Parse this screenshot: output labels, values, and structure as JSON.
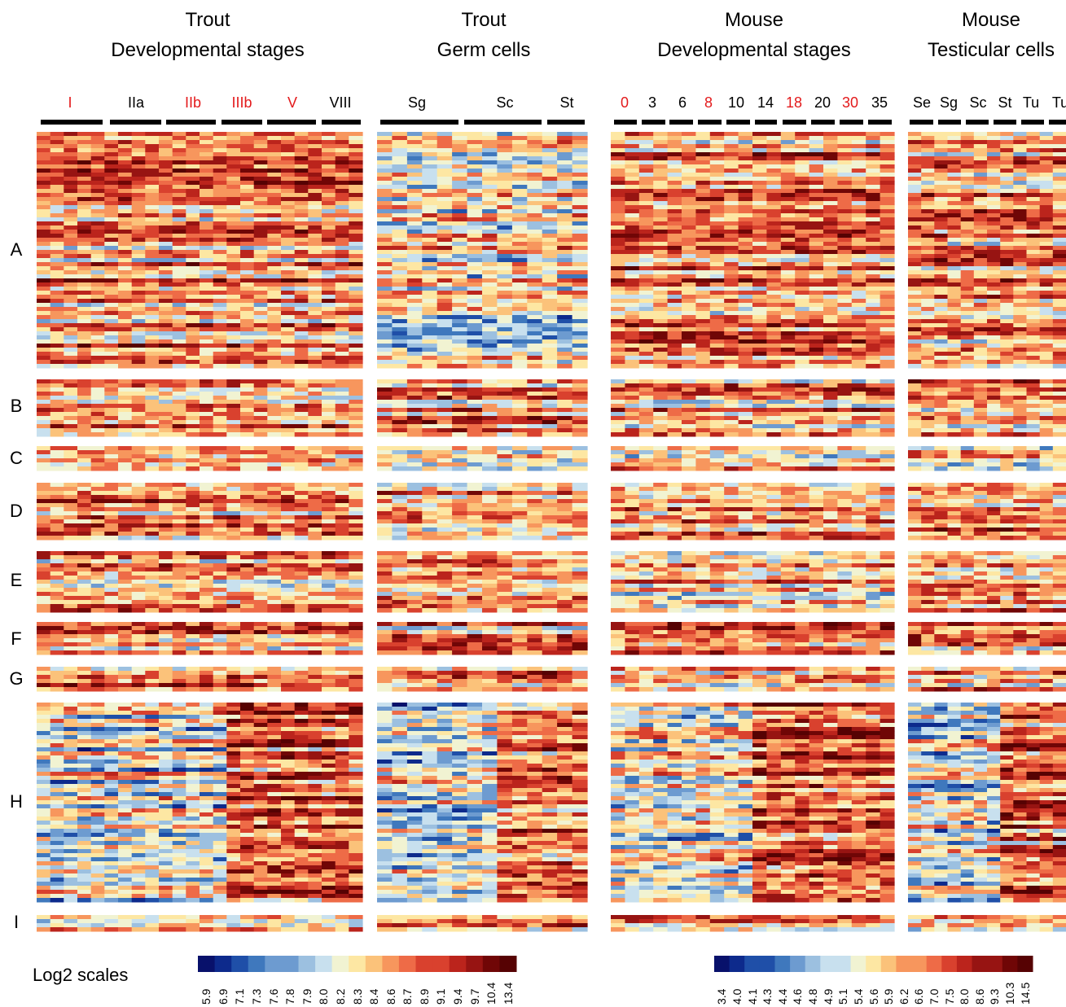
{
  "panels": [
    {
      "title_line1": "Trout",
      "title_line2": "Developmental stages",
      "stages": [
        {
          "label": "I",
          "red": true
        },
        {
          "label": "IIa",
          "red": false
        },
        {
          "label": "IIb",
          "red": true
        },
        {
          "label": "IIIb",
          "red": true
        },
        {
          "label": "V",
          "red": true
        },
        {
          "label": "VIII",
          "red": false
        }
      ]
    },
    {
      "title_line1": "Trout",
      "title_line2": "Germ cells",
      "stages": [
        {
          "label": "Sg",
          "red": false
        },
        {
          "label": "Sc",
          "red": false
        },
        {
          "label": "St",
          "red": false
        }
      ]
    },
    {
      "title_line1": "Mouse",
      "title_line2": "Developmental stages",
      "stages": [
        {
          "label": "0",
          "red": true
        },
        {
          "label": "3",
          "red": false
        },
        {
          "label": "6",
          "red": false
        },
        {
          "label": "8",
          "red": true
        },
        {
          "label": "10",
          "red": false
        },
        {
          "label": "14",
          "red": false
        },
        {
          "label": "18",
          "red": true
        },
        {
          "label": "20",
          "red": false
        },
        {
          "label": "30",
          "red": true
        },
        {
          "label": "35",
          "red": false
        }
      ]
    },
    {
      "title_line1": "Mouse",
      "title_line2": "Testicular cells",
      "stages": [
        {
          "label": "Se",
          "red": false
        },
        {
          "label": "Sg",
          "red": false
        },
        {
          "label": "Sc",
          "red": false
        },
        {
          "label": "St",
          "red": false
        },
        {
          "label": "Tu",
          "red": false
        },
        {
          "label": "Tu",
          "red": false
        }
      ]
    }
  ],
  "clusters": [
    "A",
    "B",
    "C",
    "D",
    "E",
    "F",
    "G",
    "H",
    "I"
  ],
  "legend": {
    "label": "Log2 scales",
    "trout_ticks": [
      "5.9",
      "6.9",
      "7.1",
      "7.3",
      "7.6",
      "7.8",
      "7.9",
      "8.0",
      "8.2",
      "8.3",
      "8.4",
      "8.6",
      "8.7",
      "8.9",
      "9.1",
      "9.4",
      "9.7",
      "10.4",
      "13.4"
    ],
    "mouse_ticks": [
      "3.4",
      "4.0",
      "4.1",
      "4.3",
      "4.4",
      "4.6",
      "4.8",
      "4.9",
      "5.1",
      "5.4",
      "5.6",
      "5.9",
      "6.2",
      "6.6",
      "7.0",
      "7.5",
      "8.0",
      "8.6",
      "9.3",
      "10.3",
      "14.5"
    ]
  },
  "colors": {
    "palette": [
      "#08116b",
      "#0d2a8c",
      "#1f4fa8",
      "#3f78bd",
      "#6d9bd0",
      "#9cc0e0",
      "#c8e0ee",
      "#f1f3d2",
      "#fde7a3",
      "#fbc27a",
      "#f7965d",
      "#ee6b47",
      "#d9412e",
      "#bb241c",
      "#971412",
      "#700606",
      "#560203"
    ]
  }
}
